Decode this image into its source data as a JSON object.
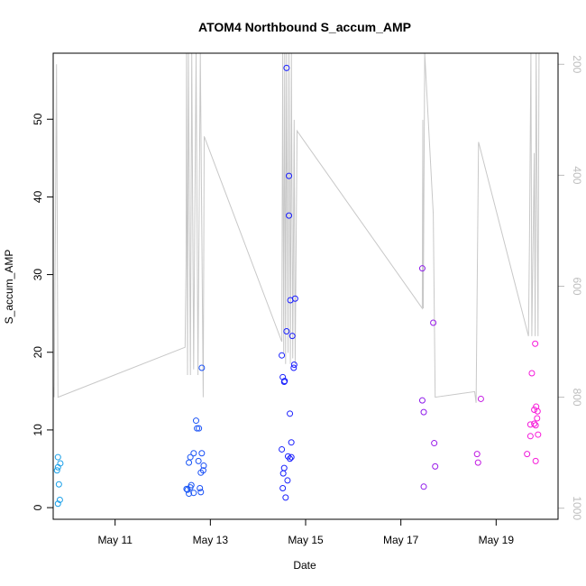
{
  "chart_data": {
    "type": "scatter",
    "title": "ATOM4 Northbound S_accum_AMP",
    "xlabel": "Date",
    "ylabel": "S_accum_AMP",
    "x_ticks": [
      "May 11",
      "May 13",
      "May 15",
      "May 17",
      "May 19"
    ],
    "x_tick_values": [
      11,
      13,
      15,
      17,
      19
    ],
    "xlim": [
      9.7,
      20.3
    ],
    "ylim": [
      -1.5,
      58.5
    ],
    "y_ticks": [
      0,
      10,
      20,
      30,
      40,
      50
    ],
    "y2_ticks": [
      200,
      400,
      600,
      800,
      1000
    ],
    "y2lim": [
      1020,
      180
    ],
    "y2_inverted": true,
    "colors": {
      "axis": "#000000",
      "secondary_axis": "#bdbdbd",
      "line": "#c8c8c8",
      "point_start": "#1aa3e8",
      "point_mid": "#1a1aff",
      "point_end": "#ff1ad8"
    },
    "points": [
      {
        "x": 9.8,
        "y": 6.5
      },
      {
        "x": 9.8,
        "y": 5.2
      },
      {
        "x": 9.85,
        "y": 5.7
      },
      {
        "x": 9.78,
        "y": 4.8
      },
      {
        "x": 9.82,
        "y": 3.0
      },
      {
        "x": 9.84,
        "y": 1.0
      },
      {
        "x": 9.8,
        "y": 0.5
      },
      {
        "x": 12.5,
        "y": 2.4
      },
      {
        "x": 12.52,
        "y": 2.3
      },
      {
        "x": 12.55,
        "y": 1.8
      },
      {
        "x": 12.58,
        "y": 2.6
      },
      {
        "x": 12.55,
        "y": 5.8
      },
      {
        "x": 12.58,
        "y": 6.5
      },
      {
        "x": 12.6,
        "y": 2.9
      },
      {
        "x": 12.65,
        "y": 1.9
      },
      {
        "x": 12.65,
        "y": 7.0
      },
      {
        "x": 12.7,
        "y": 11.2
      },
      {
        "x": 12.72,
        "y": 10.2
      },
      {
        "x": 12.76,
        "y": 10.2
      },
      {
        "x": 12.75,
        "y": 6.0
      },
      {
        "x": 12.78,
        "y": 2.5
      },
      {
        "x": 12.8,
        "y": 2.0
      },
      {
        "x": 12.8,
        "y": 4.5
      },
      {
        "x": 12.82,
        "y": 7.0
      },
      {
        "x": 12.85,
        "y": 4.8
      },
      {
        "x": 12.86,
        "y": 5.4
      },
      {
        "x": 12.82,
        "y": 18.0
      },
      {
        "x": 14.5,
        "y": 19.6
      },
      {
        "x": 14.52,
        "y": 16.8
      },
      {
        "x": 14.55,
        "y": 16.2
      },
      {
        "x": 14.56,
        "y": 16.3
      },
      {
        "x": 14.5,
        "y": 7.5
      },
      {
        "x": 14.53,
        "y": 4.4
      },
      {
        "x": 14.55,
        "y": 5.1
      },
      {
        "x": 14.52,
        "y": 2.5
      },
      {
        "x": 14.58,
        "y": 1.3
      },
      {
        "x": 14.62,
        "y": 3.5
      },
      {
        "x": 14.6,
        "y": 22.7
      },
      {
        "x": 14.6,
        "y": 56.6
      },
      {
        "x": 14.65,
        "y": 42.7
      },
      {
        "x": 14.65,
        "y": 37.6
      },
      {
        "x": 14.68,
        "y": 26.7
      },
      {
        "x": 14.78,
        "y": 26.9
      },
      {
        "x": 14.72,
        "y": 22.1
      },
      {
        "x": 14.75,
        "y": 18.0
      },
      {
        "x": 14.76,
        "y": 18.4
      },
      {
        "x": 14.67,
        "y": 12.1
      },
      {
        "x": 14.7,
        "y": 8.4
      },
      {
        "x": 14.63,
        "y": 6.6
      },
      {
        "x": 14.67,
        "y": 6.3
      },
      {
        "x": 14.7,
        "y": 6.5
      },
      {
        "x": 17.45,
        "y": 30.8
      },
      {
        "x": 17.45,
        "y": 13.8
      },
      {
        "x": 17.48,
        "y": 12.3
      },
      {
        "x": 17.48,
        "y": 2.7
      },
      {
        "x": 17.68,
        "y": 23.8
      },
      {
        "x": 17.7,
        "y": 8.3
      },
      {
        "x": 17.72,
        "y": 5.3
      },
      {
        "x": 18.6,
        "y": 6.9
      },
      {
        "x": 18.62,
        "y": 5.8
      },
      {
        "x": 18.68,
        "y": 14.0
      },
      {
        "x": 19.65,
        "y": 6.9
      },
      {
        "x": 19.72,
        "y": 10.7
      },
      {
        "x": 19.72,
        "y": 9.2
      },
      {
        "x": 19.75,
        "y": 17.3
      },
      {
        "x": 19.8,
        "y": 12.6
      },
      {
        "x": 19.8,
        "y": 10.8
      },
      {
        "x": 19.83,
        "y": 10.6
      },
      {
        "x": 19.82,
        "y": 21.1
      },
      {
        "x": 19.84,
        "y": 13.0
      },
      {
        "x": 19.87,
        "y": 12.4
      },
      {
        "x": 19.86,
        "y": 11.5
      },
      {
        "x": 19.88,
        "y": 9.4
      },
      {
        "x": 19.83,
        "y": 6.0
      }
    ],
    "line_series": [
      {
        "x": 9.7,
        "y2": 780
      },
      {
        "x": 9.72,
        "y2": 800
      },
      {
        "x": 9.77,
        "y2": 200
      },
      {
        "x": 9.8,
        "y2": 800
      },
      {
        "x": 12.47,
        "y2": 710
      },
      {
        "x": 12.49,
        "y2": 560
      },
      {
        "x": 12.5,
        "y2": 180
      },
      {
        "x": 12.52,
        "y2": 760
      },
      {
        "x": 12.54,
        "y2": 180
      },
      {
        "x": 12.58,
        "y2": 760
      },
      {
        "x": 12.61,
        "y2": 180
      },
      {
        "x": 12.65,
        "y2": 750
      },
      {
        "x": 12.7,
        "y2": 180
      },
      {
        "x": 12.74,
        "y2": 760
      },
      {
        "x": 12.79,
        "y2": 180
      },
      {
        "x": 12.85,
        "y2": 800
      },
      {
        "x": 12.87,
        "y2": 330
      },
      {
        "x": 14.5,
        "y2": 700
      },
      {
        "x": 14.52,
        "y2": 180
      },
      {
        "x": 14.54,
        "y2": 720
      },
      {
        "x": 14.56,
        "y2": 180
      },
      {
        "x": 14.58,
        "y2": 740
      },
      {
        "x": 14.6,
        "y2": 180
      },
      {
        "x": 14.63,
        "y2": 720
      },
      {
        "x": 14.65,
        "y2": 180
      },
      {
        "x": 14.68,
        "y2": 740
      },
      {
        "x": 14.7,
        "y2": 180
      },
      {
        "x": 14.73,
        "y2": 730
      },
      {
        "x": 14.76,
        "y2": 300
      },
      {
        "x": 14.78,
        "y2": 740
      },
      {
        "x": 14.82,
        "y2": 320
      },
      {
        "x": 17.45,
        "y2": 640
      },
      {
        "x": 17.46,
        "y2": 300
      },
      {
        "x": 17.47,
        "y2": 640
      },
      {
        "x": 17.5,
        "y2": 180
      },
      {
        "x": 17.68,
        "y2": 470
      },
      {
        "x": 17.72,
        "y2": 800
      },
      {
        "x": 18.55,
        "y2": 790
      },
      {
        "x": 18.58,
        "y2": 810
      },
      {
        "x": 18.63,
        "y2": 340
      },
      {
        "x": 19.68,
        "y2": 690
      },
      {
        "x": 19.7,
        "y2": 520
      },
      {
        "x": 19.73,
        "y2": 180
      },
      {
        "x": 19.75,
        "y2": 690
      },
      {
        "x": 19.8,
        "y2": 360
      },
      {
        "x": 19.82,
        "y2": 690
      },
      {
        "x": 19.84,
        "y2": 180
      },
      {
        "x": 19.88,
        "y2": 690
      },
      {
        "x": 19.9,
        "y2": 180
      }
    ]
  }
}
